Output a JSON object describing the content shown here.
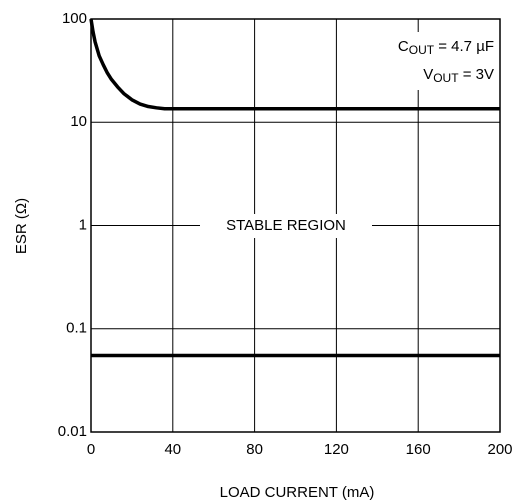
{
  "chart_data": {
    "type": "line",
    "xlabel": "LOAD CURRENT (mA)",
    "ylabel": "ESR (Ω)",
    "xlim": [
      0,
      200
    ],
    "ylim": [
      0.01,
      100
    ],
    "ylog": true,
    "grid": true,
    "xticks": [
      0,
      40,
      80,
      120,
      160,
      200
    ],
    "yticks": [
      0.01,
      0.1,
      1,
      10,
      100
    ],
    "series": [
      {
        "color": "#000000",
        "x": [
          0,
          1,
          2,
          4,
          6,
          8,
          10,
          13,
          16,
          20,
          24,
          28,
          32,
          36,
          40,
          200
        ],
        "values": [
          100,
          75,
          60,
          44,
          36,
          30,
          26,
          22,
          19,
          16.5,
          15,
          14.2,
          13.8,
          13.5,
          13.5,
          13.5
        ]
      },
      {
        "color": "#000000",
        "x": [
          0,
          200
        ],
        "values": [
          0.055,
          0.055
        ]
      }
    ],
    "annotations": [
      {
        "main": "C",
        "sub": "OUT",
        "rest": " = 4.7 µF"
      },
      {
        "main": "V",
        "sub": "OUT",
        "rest": " = 3V"
      },
      {
        "text": "STABLE REGION"
      }
    ]
  }
}
